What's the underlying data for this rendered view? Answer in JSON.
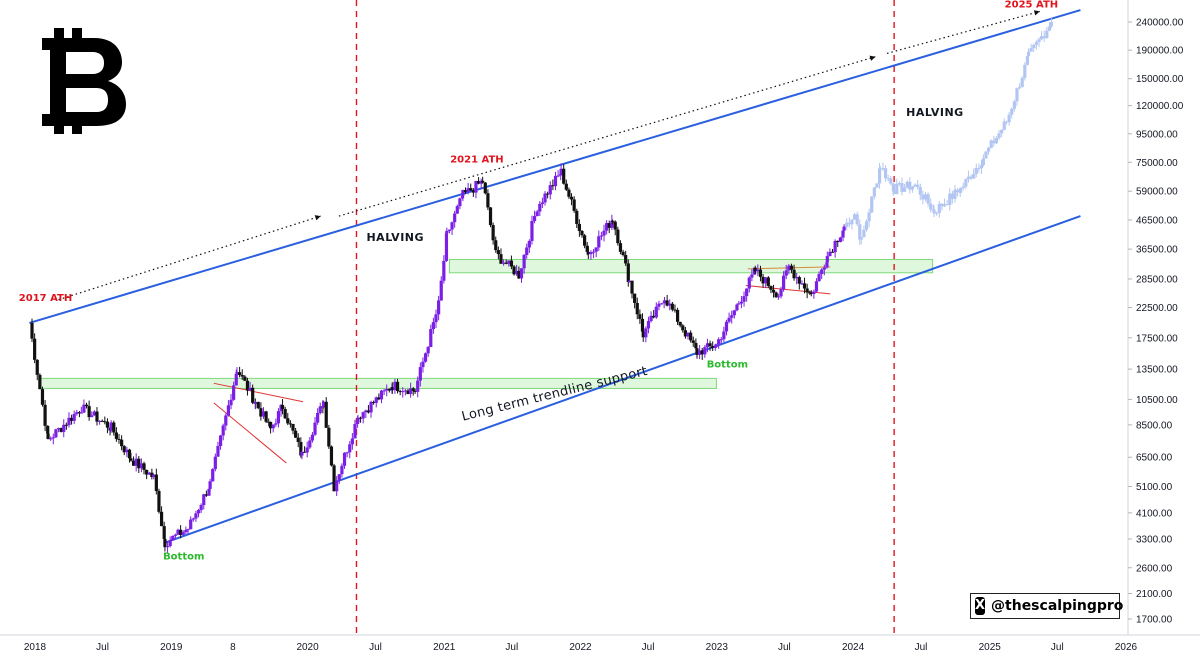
{
  "chart_data": {
    "type": "candlestick",
    "title": "",
    "xlabel": "",
    "ylabel": "",
    "y_scale": "log",
    "grid": false,
    "legend": "none",
    "ylim": [
      1500,
      270000
    ],
    "y_ticks": [
      "240000.00",
      "190000.00",
      "150000.00",
      "120000.00",
      "95000.00",
      "75000.00",
      "59000.00",
      "46500.00",
      "36500.00",
      "28500.00",
      "22500.00",
      "17500.00",
      "13500.00",
      "10500.00",
      "8500.00",
      "6500.00",
      "5100.00",
      "4100.00",
      "3300.00",
      "2600.00",
      "2100.00",
      "1700.00"
    ],
    "x_ticks": [
      "2018",
      "Jul",
      "2019",
      "8",
      "2020",
      "Jul",
      "2021",
      "Jul",
      "2022",
      "Jul",
      "2023",
      "Jul",
      "2024",
      "Jul",
      "2025",
      "Jul",
      "2026"
    ],
    "series": [
      {
        "style": "actual",
        "x": [
          "2017-12-17",
          "2018-02-05",
          "2018-05-05",
          "2018-07-24",
          "2018-09-15",
          "2018-11-15",
          "2018-12-15",
          "2019-02-15",
          "2019-04-15",
          "2019-06-26",
          "2019-08-15",
          "2019-09-24",
          "2019-10-26",
          "2019-12-17",
          "2020-02-13",
          "2020-03-12",
          "2020-05-15",
          "2020-08-15",
          "2020-10-15",
          "2020-12-17",
          "2021-01-08",
          "2021-02-20",
          "2021-04-14",
          "2021-05-19",
          "2021-07-20",
          "2021-09-07",
          "2021-11-10",
          "2022-01-22",
          "2022-03-28",
          "2022-05-12",
          "2022-06-18",
          "2022-08-14",
          "2022-11-09",
          "2022-12-30",
          "2023-03-01",
          "2023-04-14",
          "2023-06-15",
          "2023-07-13",
          "2023-09-11",
          "2023-10-24",
          "2023-12-08"
        ],
        "values": [
          19800,
          7500,
          9800,
          8300,
          6400,
          5500,
          3200,
          3600,
          5200,
          13500,
          10200,
          8200,
          9900,
          6600,
          10300,
          5100,
          9100,
          11800,
          11300,
          23000,
          41000,
          57000,
          64000,
          35000,
          29500,
          52000,
          69000,
          35000,
          47000,
          28000,
          18000,
          24500,
          15500,
          16500,
          23500,
          30500,
          25000,
          31500,
          25000,
          34500,
          44000
        ]
      },
      {
        "style": "projected",
        "x": [
          "2023-12-08",
          "2024-01-05",
          "2024-01-23",
          "2024-03-14",
          "2024-04-20",
          "2024-06-15",
          "2024-08-05",
          "2024-10-15",
          "2024-12-15",
          "2025-02-15",
          "2025-04-15",
          "2025-06-15"
        ],
        "values": [
          44000,
          49000,
          39000,
          73000,
          60000,
          62000,
          50000,
          60000,
          78000,
          105000,
          180000,
          240000
        ]
      }
    ],
    "lines": [
      {
        "name": "upper-channel",
        "from": {
          "x": "2017-12-17",
          "y": 19800
        },
        "to": {
          "x": "2025-09-01",
          "y": 265000
        }
      },
      {
        "name": "lower-channel",
        "from": {
          "x": "2018-12-15",
          "y": 3200
        },
        "to": {
          "x": "2025-09-01",
          "y": 48000
        }
      },
      {
        "name": "dotted-arrow-1",
        "from": {
          "x": "2018-03-05",
          "y": 24000
        },
        "to": {
          "x": "2020-02-05",
          "y": 48000
        }
      },
      {
        "name": "dotted-arrow-2",
        "from": {
          "x": "2020-03-25",
          "y": 48000
        },
        "to": {
          "x": "2024-03-01",
          "y": 180000
        }
      },
      {
        "name": "dotted-arrow-3",
        "from": {
          "x": "2024-04-01",
          "y": 185000
        },
        "to": {
          "x": "2025-05-15",
          "y": 262000
        }
      }
    ],
    "zones": [
      {
        "from": "2018-01-15",
        "to": "2022-12-31",
        "y_low": 11500,
        "y_high": 12500
      },
      {
        "from": "2021-01-15",
        "to": "2024-08-01",
        "y_low": 30000,
        "y_high": 33500
      }
    ],
    "vertical_markers": [
      "2020-05-11",
      "2024-04-20"
    ],
    "annotations": {
      "ath_2017": "2017 ATH",
      "ath_2021": "2021 ATH",
      "ath_2025": "2025 ATH",
      "bottom_1": "Bottom",
      "bottom_2": "Bottom",
      "halving_1": "HALVING",
      "halving_2": "HALVING",
      "trendline": "Long term trendline support"
    },
    "colors": {
      "candle_up": "#7b1fe6",
      "candle_down": "#111111",
      "projection": "#b3c6f2",
      "channel": "#2a5fe0",
      "halving_line": "#e0141e",
      "zone_fill": "#c9f2c6",
      "zone_stroke": "#7ed97a",
      "triangle": "#e03434",
      "ath_text": "#e0141e",
      "bottom_text": "#2eb82e"
    }
  },
  "logo": {
    "symbol": "bitcoin-symbol",
    "glyph": "₿"
  },
  "watermark": {
    "icon": "x-logo-icon",
    "glyph": "X",
    "handle": "@thescalpingpro"
  }
}
